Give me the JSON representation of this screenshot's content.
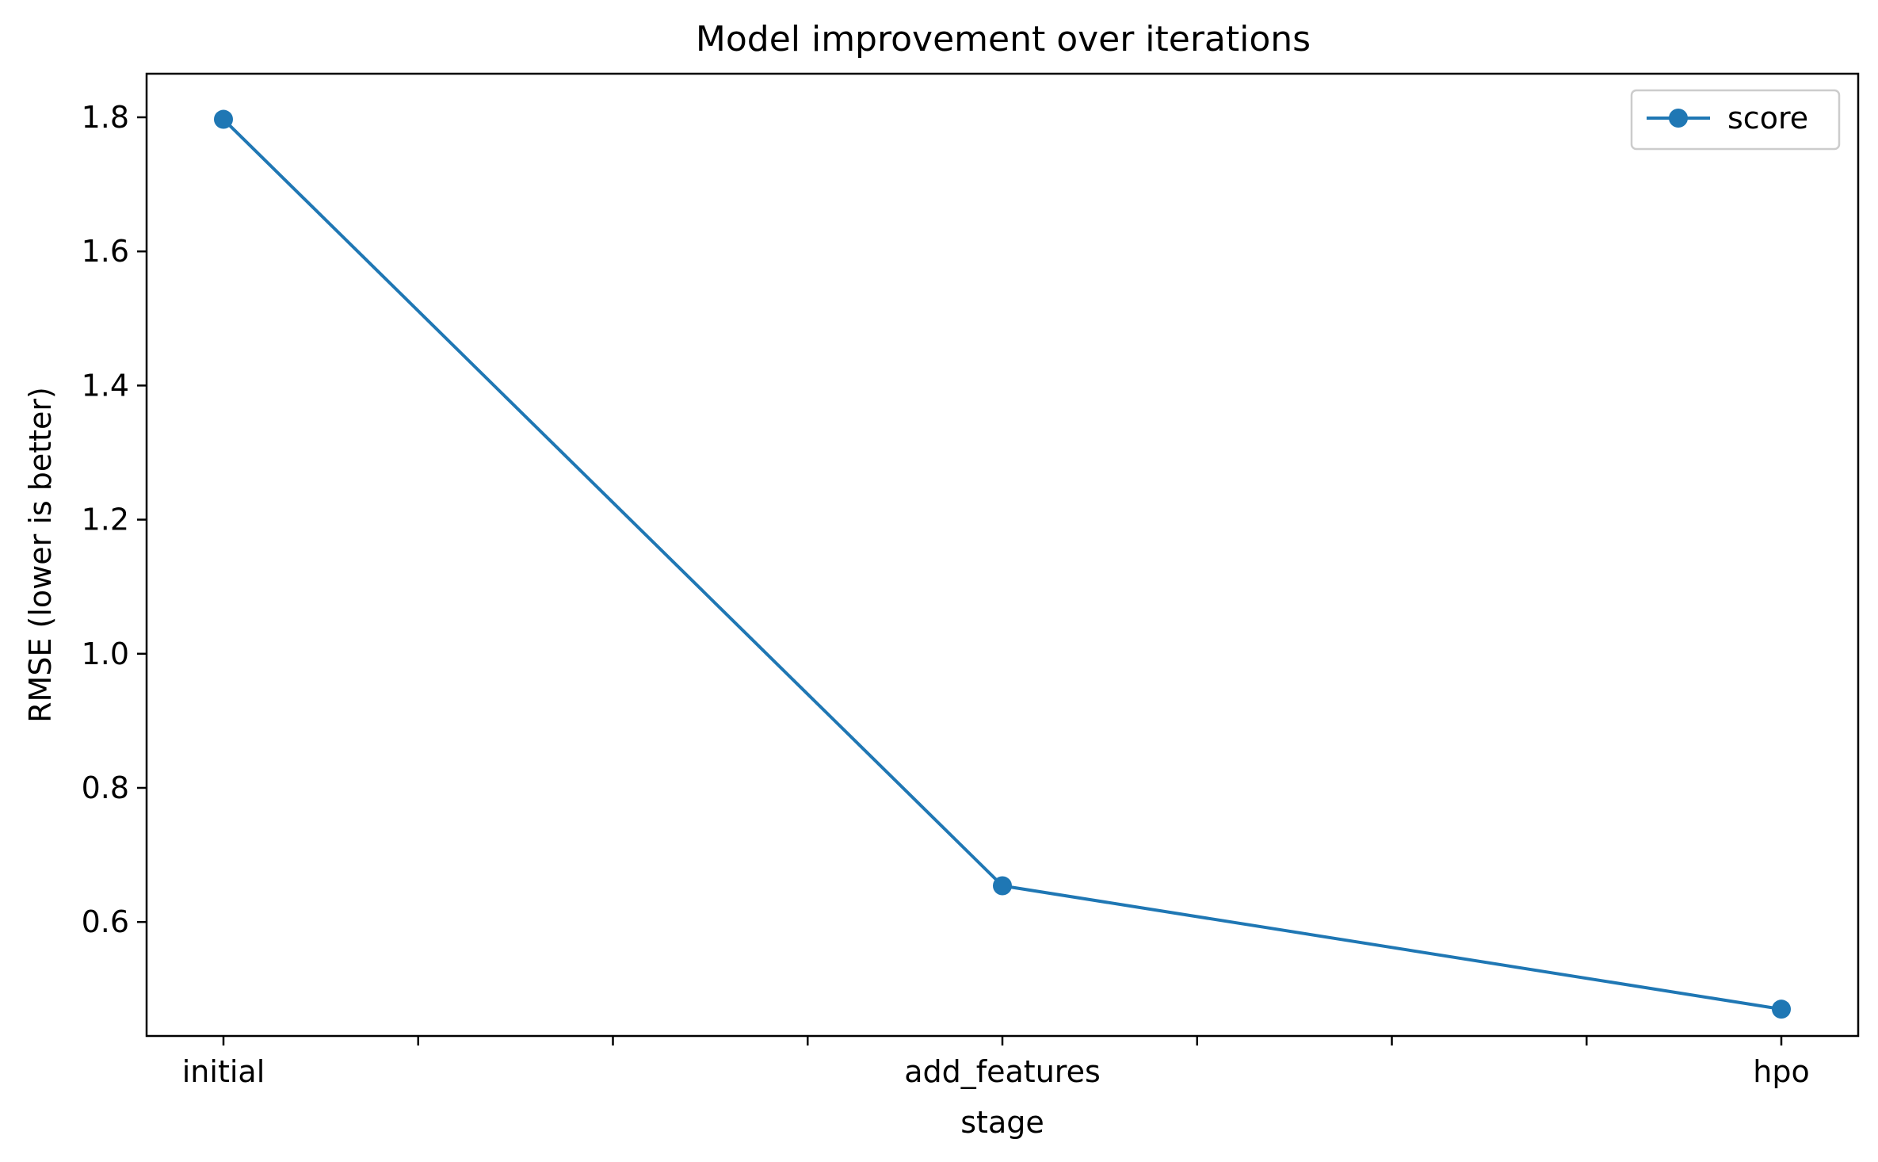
{
  "chart_data": {
    "type": "line",
    "title": "Model improvement over iterations",
    "xlabel": "stage",
    "ylabel": "RMSE (lower is better)",
    "categories": [
      "initial",
      "add_features",
      "hpo"
    ],
    "x_minor_ticks": 8,
    "ylim": [
      0.43,
      1.865
    ],
    "yticks": [
      0.6,
      0.8,
      1.0,
      1.2,
      1.4,
      1.6,
      1.8
    ],
    "ytick_labels": [
      "0.6",
      "0.8",
      "1.0",
      "1.2",
      "1.4",
      "1.6",
      "1.8"
    ],
    "series": [
      {
        "name": "score",
        "values": [
          1.797,
          0.654,
          0.47
        ],
        "color": "#1f77b4",
        "marker": "circle"
      }
    ],
    "legend": {
      "position": "top-right"
    },
    "grid": false
  }
}
